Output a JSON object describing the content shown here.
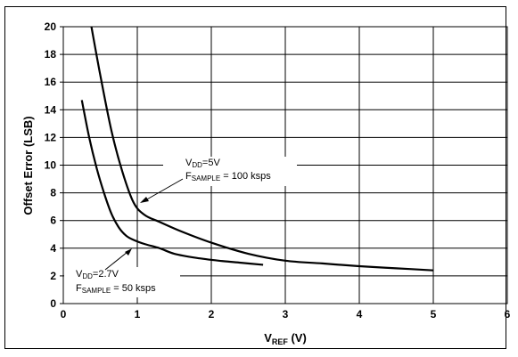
{
  "chart_data": {
    "type": "line",
    "xlabel": "V",
    "xlabel_sub": "REF",
    "xlabel_unit": " (V)",
    "ylabel": "Offset Error (LSB)",
    "xlim": [
      0,
      6
    ],
    "ylim": [
      0,
      20
    ],
    "x_ticks": [
      0,
      1,
      2,
      3,
      4,
      5,
      6
    ],
    "y_ticks": [
      0,
      2,
      4,
      6,
      8,
      10,
      12,
      14,
      16,
      18,
      20
    ],
    "grid": true,
    "series": [
      {
        "name": "VDD=5V, FSAMPLE = 100 ksps",
        "x": [
          0.38,
          0.5,
          0.65,
          0.8,
          0.95,
          1.1,
          1.3,
          1.6,
          2.0,
          2.5,
          3.0,
          3.5,
          4.0,
          4.5,
          5.0
        ],
        "y": [
          20,
          16.5,
          12.5,
          9.5,
          7.3,
          6.4,
          5.9,
          5.2,
          4.4,
          3.6,
          3.1,
          2.9,
          2.7,
          2.55,
          2.4
        ]
      },
      {
        "name": "VDD=2.7V, FSAMPLE = 50 ksps",
        "x": [
          0.25,
          0.35,
          0.45,
          0.55,
          0.65,
          0.75,
          0.85,
          0.95,
          1.1,
          1.3,
          1.5,
          1.8,
          2.1,
          2.4,
          2.7
        ],
        "y": [
          14.7,
          12.0,
          9.8,
          8.0,
          6.5,
          5.5,
          4.9,
          4.6,
          4.3,
          4.0,
          3.6,
          3.3,
          3.1,
          2.95,
          2.8
        ]
      }
    ],
    "annotations": [
      {
        "line1_main": "V",
        "line1_sub": "DD",
        "line1_tail": "=5V",
        "line2_main": "F",
        "line2_sub": "SAMPLE",
        "line2_tail": " = 100 ksps",
        "arrow_to": [
          0.95,
          7.3
        ]
      },
      {
        "line1_main": "V",
        "line1_sub": "DD",
        "line1_tail": "=2.7V",
        "line2_main": "F",
        "line2_sub": "SAMPLE",
        "line2_tail": " = 50 ksps",
        "arrow_to": [
          0.92,
          4.1
        ]
      }
    ]
  },
  "colors": {
    "line": "#000000",
    "grid": "#000000",
    "background": "#ffffff"
  }
}
